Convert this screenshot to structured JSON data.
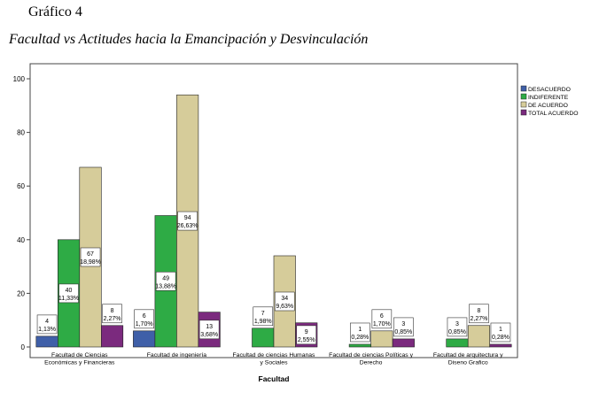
{
  "caption": "Gráfico 4",
  "subtitle": "Facultad vs Actitudes hacia la Emancipación y Desvinculación",
  "chart_data": {
    "type": "bar",
    "xlabel": "Facultad",
    "ylabel": "",
    "ylim": [
      0,
      105
    ],
    "yticks": [
      0,
      20,
      40,
      60,
      80,
      100
    ],
    "grid": false,
    "legend_position": "top-right",
    "categories": [
      [
        "Facultad de Ciencias",
        "Económicas y Financieras"
      ],
      [
        "Facultad de ingeniería"
      ],
      [
        "Facultad de ciencias Humanas",
        "y Sociales"
      ],
      [
        "Facultad de ciencias Políticas y",
        "Derecho"
      ],
      [
        "Facultad de arquitectura y",
        "Diseno Grafico"
      ]
    ],
    "series": [
      {
        "name": "DESACUERDO",
        "color": "#3f5fa8",
        "values": [
          4,
          6,
          0,
          0,
          0
        ],
        "labels": [
          [
            "4",
            "1,13%"
          ],
          [
            "6",
            "1,70%"
          ],
          null,
          null,
          null
        ]
      },
      {
        "name": "INDIFERENTE",
        "color": "#2eab45",
        "values": [
          40,
          49,
          7,
          1,
          3
        ],
        "labels": [
          [
            "40",
            "11,33%"
          ],
          [
            "49",
            "13,88%"
          ],
          [
            "7",
            "1,98%"
          ],
          [
            "1",
            "0,28%"
          ],
          [
            "3",
            "0,85%"
          ]
        ]
      },
      {
        "name": "DE ACUERDO",
        "color": "#d6cc9a",
        "values": [
          67,
          94,
          34,
          6,
          8
        ],
        "labels": [
          [
            "67",
            "18,98%"
          ],
          [
            "94",
            "26,63%"
          ],
          [
            "34",
            "9,63%"
          ],
          [
            "6",
            "1,70%"
          ],
          [
            "8",
            "2,27%"
          ]
        ]
      },
      {
        "name": "TOTAL ACUERDO",
        "color": "#7b2a7e",
        "values": [
          8,
          13,
          9,
          3,
          1
        ],
        "labels": [
          [
            "8",
            "2,27%"
          ],
          [
            "13",
            "3,68%"
          ],
          [
            "9",
            "2,55%"
          ],
          [
            "3",
            "0,85%"
          ],
          [
            "1",
            "0,28%"
          ]
        ]
      }
    ]
  }
}
